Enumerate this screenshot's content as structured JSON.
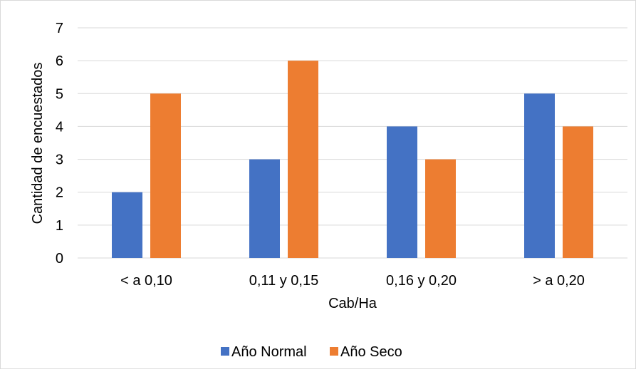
{
  "chart_data": {
    "type": "bar",
    "title": "",
    "xlabel": "Cab/Ha",
    "ylabel": "Cantidad de encuestados",
    "categories": [
      "< a 0,10",
      "0,11 y 0,15",
      "0,16 y 0,20",
      "> a 0,20"
    ],
    "series": [
      {
        "name": "Año Normal",
        "values": [
          2,
          3,
          4,
          5
        ],
        "color": "#4472c4"
      },
      {
        "name": "Año Seco",
        "values": [
          5,
          6,
          3,
          4
        ],
        "color": "#ed7d31"
      }
    ],
    "ylim": [
      0,
      7
    ],
    "yticks": [
      "0",
      "1",
      "2",
      "3",
      "4",
      "5",
      "6",
      "7"
    ],
    "grid": true,
    "gridColor": "#d9d9d9",
    "legend": "bottom"
  }
}
